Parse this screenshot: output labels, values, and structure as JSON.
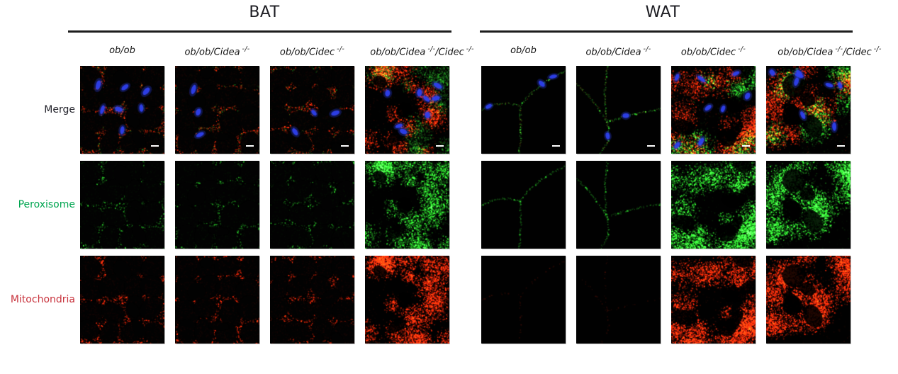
{
  "groups": [
    {
      "id": "bat",
      "title": "BAT",
      "genotypes": [
        {
          "segments": [
            {
              "text": "ob/ob",
              "sup": false
            }
          ]
        },
        {
          "segments": [
            {
              "text": "ob/ob/Cidea",
              "sup": false
            },
            {
              "text": "-/-",
              "sup": true
            }
          ]
        },
        {
          "segments": [
            {
              "text": "ob/ob/Cidec",
              "sup": false
            },
            {
              "text": "-/-",
              "sup": true
            }
          ]
        },
        {
          "segments": [
            {
              "text": "ob/ob/Cidea",
              "sup": false
            },
            {
              "text": "-/-",
              "sup": true
            },
            {
              "text": "/Cidec",
              "sup": false
            },
            {
              "text": "-/-",
              "sup": true
            }
          ]
        }
      ]
    },
    {
      "id": "wat",
      "title": "WAT",
      "genotypes": [
        {
          "segments": [
            {
              "text": "ob/ob",
              "sup": false
            }
          ]
        },
        {
          "segments": [
            {
              "text": "ob/ob/Cidea",
              "sup": false
            },
            {
              "text": "-/-",
              "sup": true
            }
          ]
        },
        {
          "segments": [
            {
              "text": "ob/ob/Cidec",
              "sup": false
            },
            {
              "text": "-/-",
              "sup": true
            }
          ]
        },
        {
          "segments": [
            {
              "text": "ob/ob/Cidea",
              "sup": false
            },
            {
              "text": "-/-",
              "sup": true
            },
            {
              "text": "/Cidec",
              "sup": false
            },
            {
              "text": "-/-",
              "sup": true
            }
          ]
        }
      ]
    }
  ],
  "rows": [
    {
      "id": "merge",
      "label": "Merge",
      "label_color": "#24242c"
    },
    {
      "id": "peroxisome",
      "label": "Peroxisome",
      "label_color": "#00a550"
    },
    {
      "id": "mitochondria",
      "label": "Mitochondria",
      "label_color": "#c8323c"
    }
  ],
  "channels": {
    "red_hex": "#ff2606",
    "green_hex": "#2ada2a",
    "blue_hex": "#2e41f0",
    "scalebar_hex": "#ffffff"
  },
  "tiles": {
    "bat": {
      "columns": [
        {
          "pattern": "network",
          "seed": 101,
          "green_bias": 0.5
        },
        {
          "pattern": "network",
          "seed": 102,
          "green_bias": 0.5
        },
        {
          "pattern": "network",
          "seed": 103,
          "green_bias": 0.5
        },
        {
          "pattern": "dense",
          "seed": 104,
          "green_bias": 0.5
        }
      ],
      "row_channels": {
        "merge": {
          "r": 0.95,
          "g": 0.42,
          "b": true,
          "scalebar": true
        },
        "peroxisome": {
          "r": 0,
          "g": 0.62,
          "b": false,
          "scalebar": false
        },
        "mitochondria": {
          "r": 0.95,
          "g": 0,
          "b": false,
          "scalebar": false
        }
      }
    },
    "wat": {
      "columns": [
        {
          "pattern": "faintlines",
          "seed": 201,
          "green_bias": 0.5
        },
        {
          "pattern": "faintlines",
          "seed": 202,
          "green_bias": 0.5
        },
        {
          "pattern": "densepatch",
          "seed": 203,
          "green_bias": 0.47
        },
        {
          "pattern": "densepatch",
          "seed": 204,
          "green_bias": 0.58
        }
      ],
      "row_channels": {
        "merge": {
          "r": 0.9,
          "g": 0.8,
          "b": true,
          "scalebar": true
        },
        "peroxisome": {
          "r": 0,
          "g": 0.8,
          "b": false,
          "scalebar": false
        },
        "mitochondria": {
          "r": 0.85,
          "g": 0,
          "b": false,
          "scalebar": false
        }
      }
    }
  }
}
